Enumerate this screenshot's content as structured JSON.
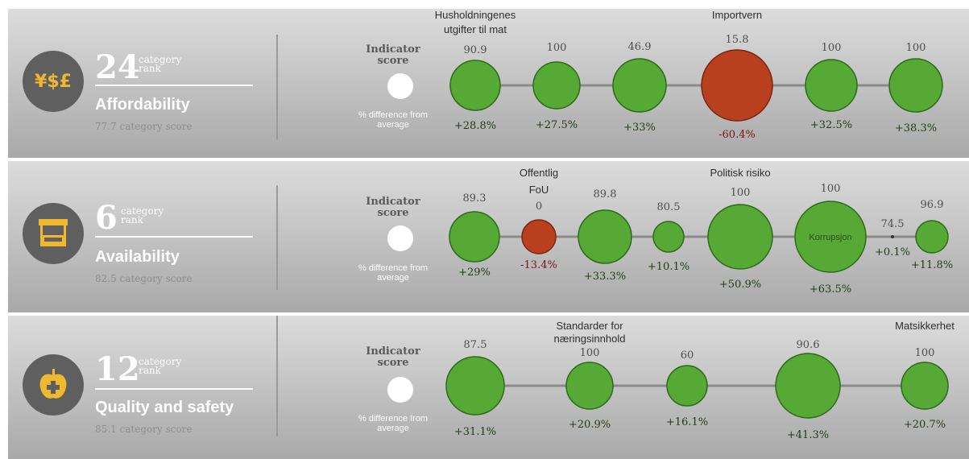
{
  "chart_data": [
    {
      "type": "bubble",
      "category": "Affordability",
      "rank": "24",
      "rank_label": [
        "category",
        "rank"
      ],
      "category_score_text": "77.7 category score",
      "icon": "currency-icon",
      "icon_text": "¥$£",
      "legend": {
        "score_label": "Indicator score",
        "diff_label": "% difference from average"
      },
      "indicators": [
        {
          "name": [
            "Husholdningenes",
            "utgifter til mat"
          ],
          "score": 90.9,
          "score_label": "90.9",
          "diff": "+28.8%",
          "diff_value": 28.8
        },
        {
          "name": [],
          "score": 100,
          "score_label": "100",
          "diff": "+27.5%",
          "diff_value": 27.5
        },
        {
          "name": [],
          "score": 46.9,
          "score_label": "46.9",
          "diff": "+33%",
          "diff_value": 33
        },
        {
          "name": [
            "Importvern"
          ],
          "score": 15.8,
          "score_label": "15.8",
          "diff": "-60.4%",
          "diff_value": -60.4
        },
        {
          "name": [],
          "score": 100,
          "score_label": "100",
          "diff": "+32.5%",
          "diff_value": 32.5
        },
        {
          "name": [],
          "score": 100,
          "score_label": "100",
          "diff": "+38.3%",
          "diff_value": 38.3
        }
      ]
    },
    {
      "type": "bubble",
      "category": "Availability",
      "rank": "6",
      "rank_label": [
        "category",
        "rank"
      ],
      "category_score_text": "82.5 category score",
      "icon": "market-stall-icon",
      "legend": {
        "score_label": "Indicator score",
        "diff_label": "% difference from average"
      },
      "indicators": [
        {
          "name": [],
          "score": 89.3,
          "score_label": "89.3",
          "diff": "+29%",
          "diff_value": 29
        },
        {
          "name": [
            "Offentlig",
            "FoU"
          ],
          "score": 0,
          "score_label": "0",
          "diff": "-13.4%",
          "diff_value": -13.4
        },
        {
          "name": [],
          "score": 89.8,
          "score_label": "89.8",
          "diff": "+33.3%",
          "diff_value": 33.3
        },
        {
          "name": [],
          "score": 80.5,
          "score_label": "80.5",
          "diff": "+10.1%",
          "diff_value": 10.1
        },
        {
          "name": [
            "Politisk risiko"
          ],
          "score": 100,
          "score_label": "100",
          "diff": "+50.9%",
          "diff_value": 50.9
        },
        {
          "name": [],
          "score": 100,
          "score_label": "100",
          "diff": "+63.5%",
          "diff_value": 63.5,
          "inner_label": "Korrupsjon"
        },
        {
          "name": [],
          "score": 74.5,
          "score_label": "74.5",
          "diff": "+0.1%",
          "diff_value": 0.1
        },
        {
          "name": [],
          "score": 96.9,
          "score_label": "96.9",
          "diff": "+11.8%",
          "diff_value": 11.8
        }
      ]
    },
    {
      "type": "bubble",
      "category": "Quality and safety",
      "rank": "12",
      "rank_label": [
        "category",
        "rank"
      ],
      "category_score_text": "85.1 category score",
      "icon": "apple-plus-icon",
      "legend": {
        "score_label": "Indicator score",
        "diff_label": "% difference from average"
      },
      "indicators": [
        {
          "name": [],
          "score": 87.5,
          "score_label": "87.5",
          "diff": "+31.1%",
          "diff_value": 31.1
        },
        {
          "name": [
            "Standarder for",
            "næringsinnhold"
          ],
          "score": 100,
          "score_label": "100",
          "diff": "+20.9%",
          "diff_value": 20.9
        },
        {
          "name": [],
          "score": 60,
          "score_label": "60",
          "diff": "+16.1%",
          "diff_value": 16.1
        },
        {
          "name": [],
          "score": 90.6,
          "score_label": "90.6",
          "diff": "+41.3%",
          "diff_value": 41.3
        },
        {
          "name": [
            "Matsikkerhet"
          ],
          "score": 100,
          "score_label": "100",
          "diff": "+20.7%",
          "diff_value": 20.7
        }
      ]
    }
  ],
  "colors": {
    "positive": "#56a934",
    "negative": "#b8401e",
    "positive_stroke": "#2e6b1c",
    "negative_stroke": "#7a2510",
    "icon_accent": "#f0b82e",
    "connector": "#8a8a8a"
  }
}
